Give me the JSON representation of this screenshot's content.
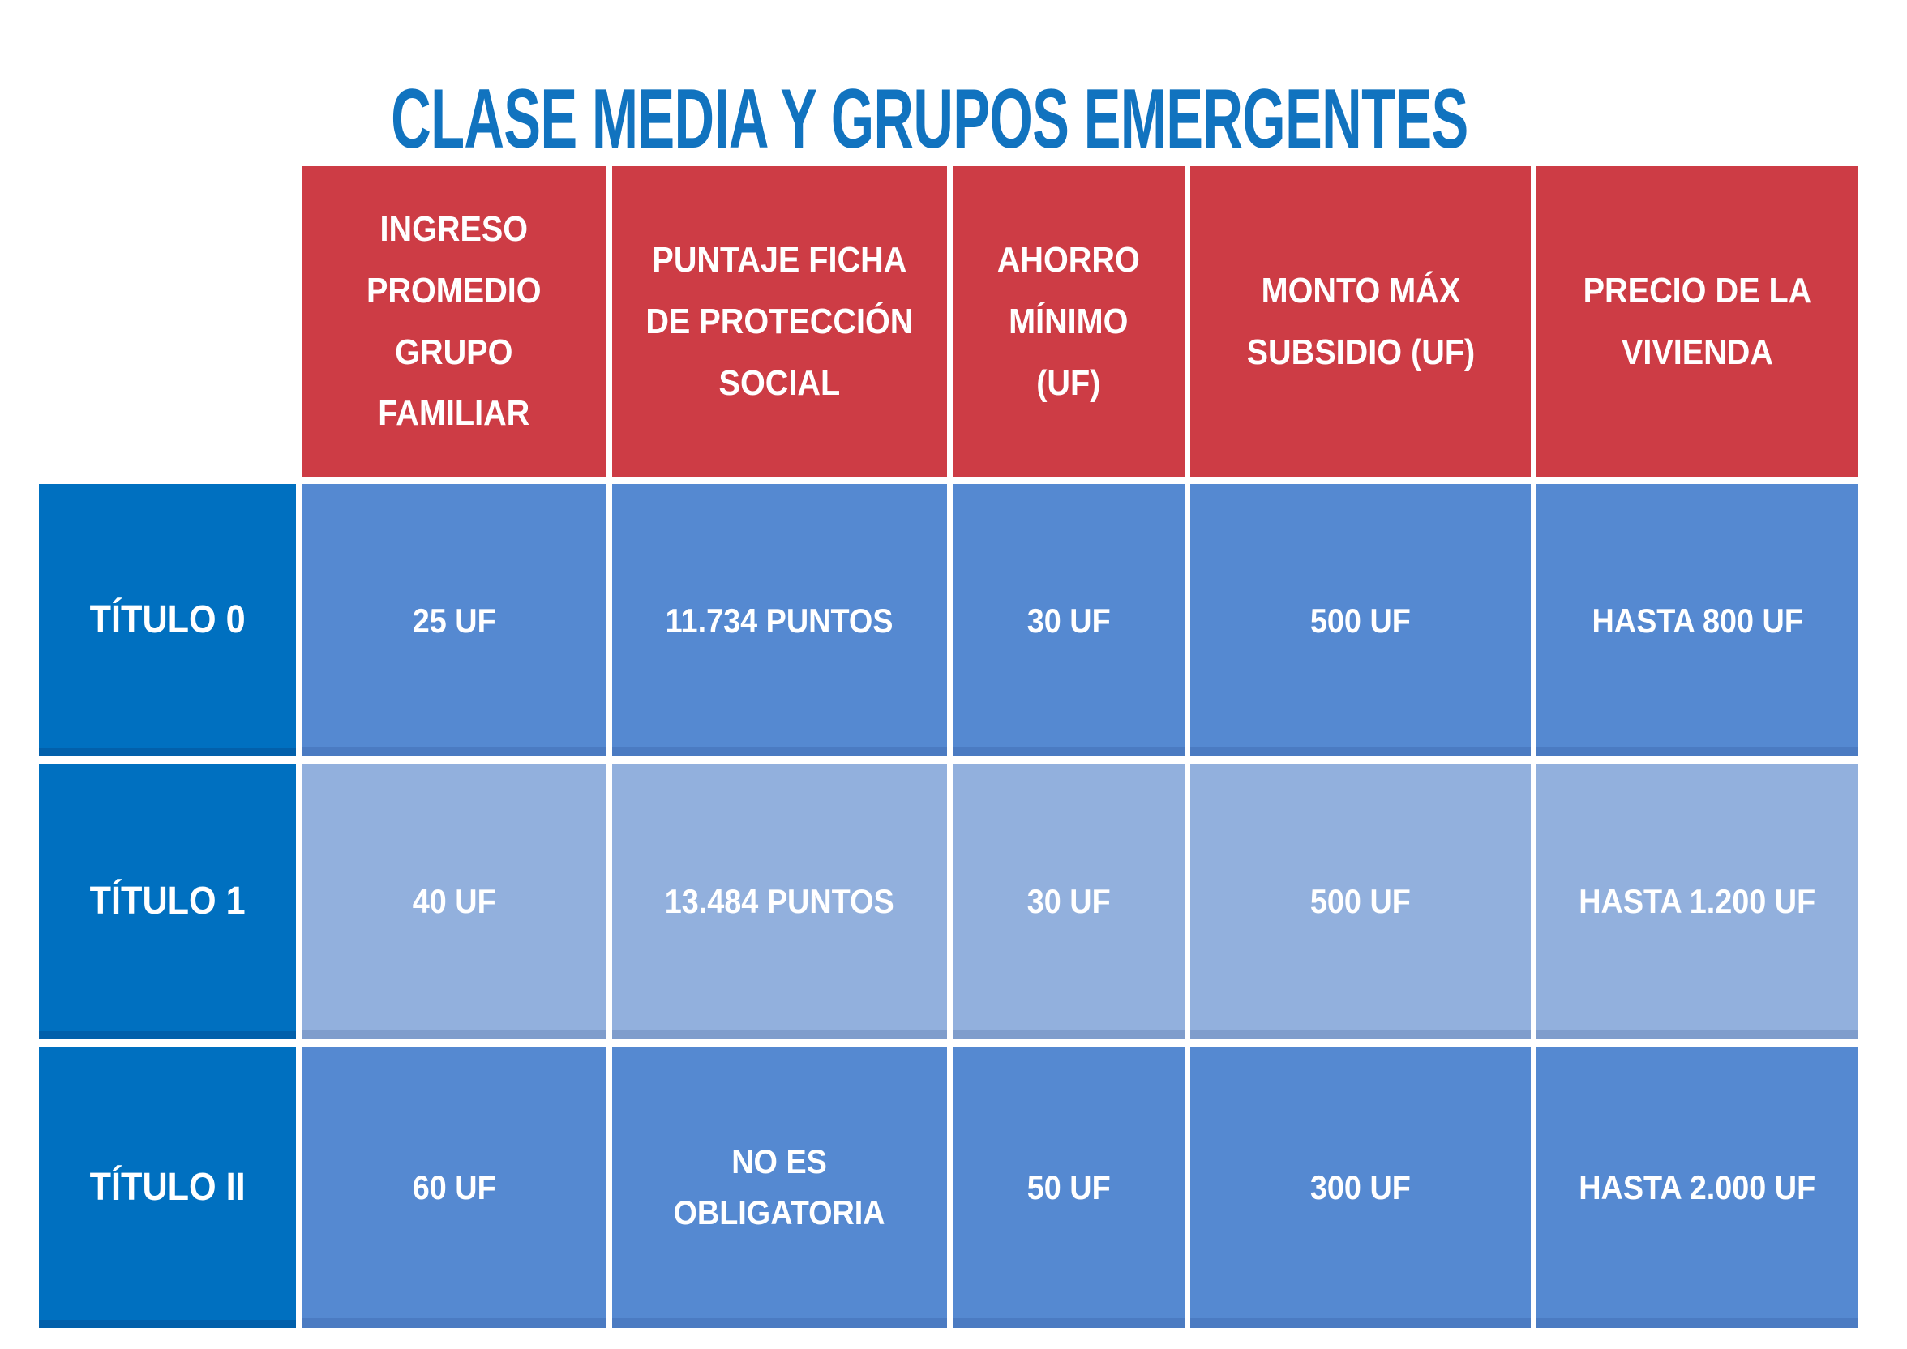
{
  "title": "CLASE MEDIA Y GRUPOS EMERGENTES",
  "colors": {
    "title_blue": "#1173bf",
    "header_red": "#cd3c45",
    "row_header_blue": "#0070c0",
    "cell_blue_medium": "#5589d1",
    "cell_blue_light": "#92b0dd",
    "text_white": "#ffffff",
    "background": "#ffffff"
  },
  "table": {
    "column_headers": [
      "INGRESO\nPROMEDIO\nGRUPO\nFAMILIAR",
      "PUNTAJE FICHA\nDE PROTECCIÓN\nSOCIAL",
      "AHORRO\nMÍNIMO\n(UF)",
      "MONTO MÁX\nSUBSIDIO (UF)",
      "PRECIO DE LA\nVIVIENDA"
    ],
    "rows": [
      {
        "label": "TÍTULO 0",
        "cells": [
          "25 UF",
          "11.734 PUNTOS",
          "30 UF",
          "500 UF",
          "HASTA 800 UF"
        ]
      },
      {
        "label": "TÍTULO 1",
        "cells": [
          "40 UF",
          "13.484 PUNTOS",
          "30 UF",
          "500 UF",
          "HASTA 1.200 UF"
        ]
      },
      {
        "label": "TÍTULO II",
        "cells": [
          "60 UF",
          "NO ES\nOBLIGATORIA",
          "50 UF",
          "300 UF",
          "HASTA 2.000 UF"
        ]
      }
    ]
  },
  "chart_data": {
    "type": "table",
    "title": "CLASE MEDIA Y GRUPOS EMERGENTES",
    "columns": [
      "",
      "INGRESO PROMEDIO GRUPO FAMILIAR",
      "PUNTAJE FICHA DE PROTECCIÓN SOCIAL",
      "AHORRO MÍNIMO (UF)",
      "MONTO MÁX SUBSIDIO (UF)",
      "PRECIO DE LA VIVIENDA"
    ],
    "rows": [
      [
        "TÍTULO 0",
        "25 UF",
        "11.734 PUNTOS",
        "30 UF",
        "500 UF",
        "HASTA 800 UF"
      ],
      [
        "TÍTULO 1",
        "40 UF",
        "13.484 PUNTOS",
        "30 UF",
        "500 UF",
        "HASTA 1.200 UF"
      ],
      [
        "TÍTULO II",
        "60 UF",
        "NO ES OBLIGATORIA",
        "50 UF",
        "300 UF",
        "HASTA 2.000 UF"
      ]
    ]
  }
}
